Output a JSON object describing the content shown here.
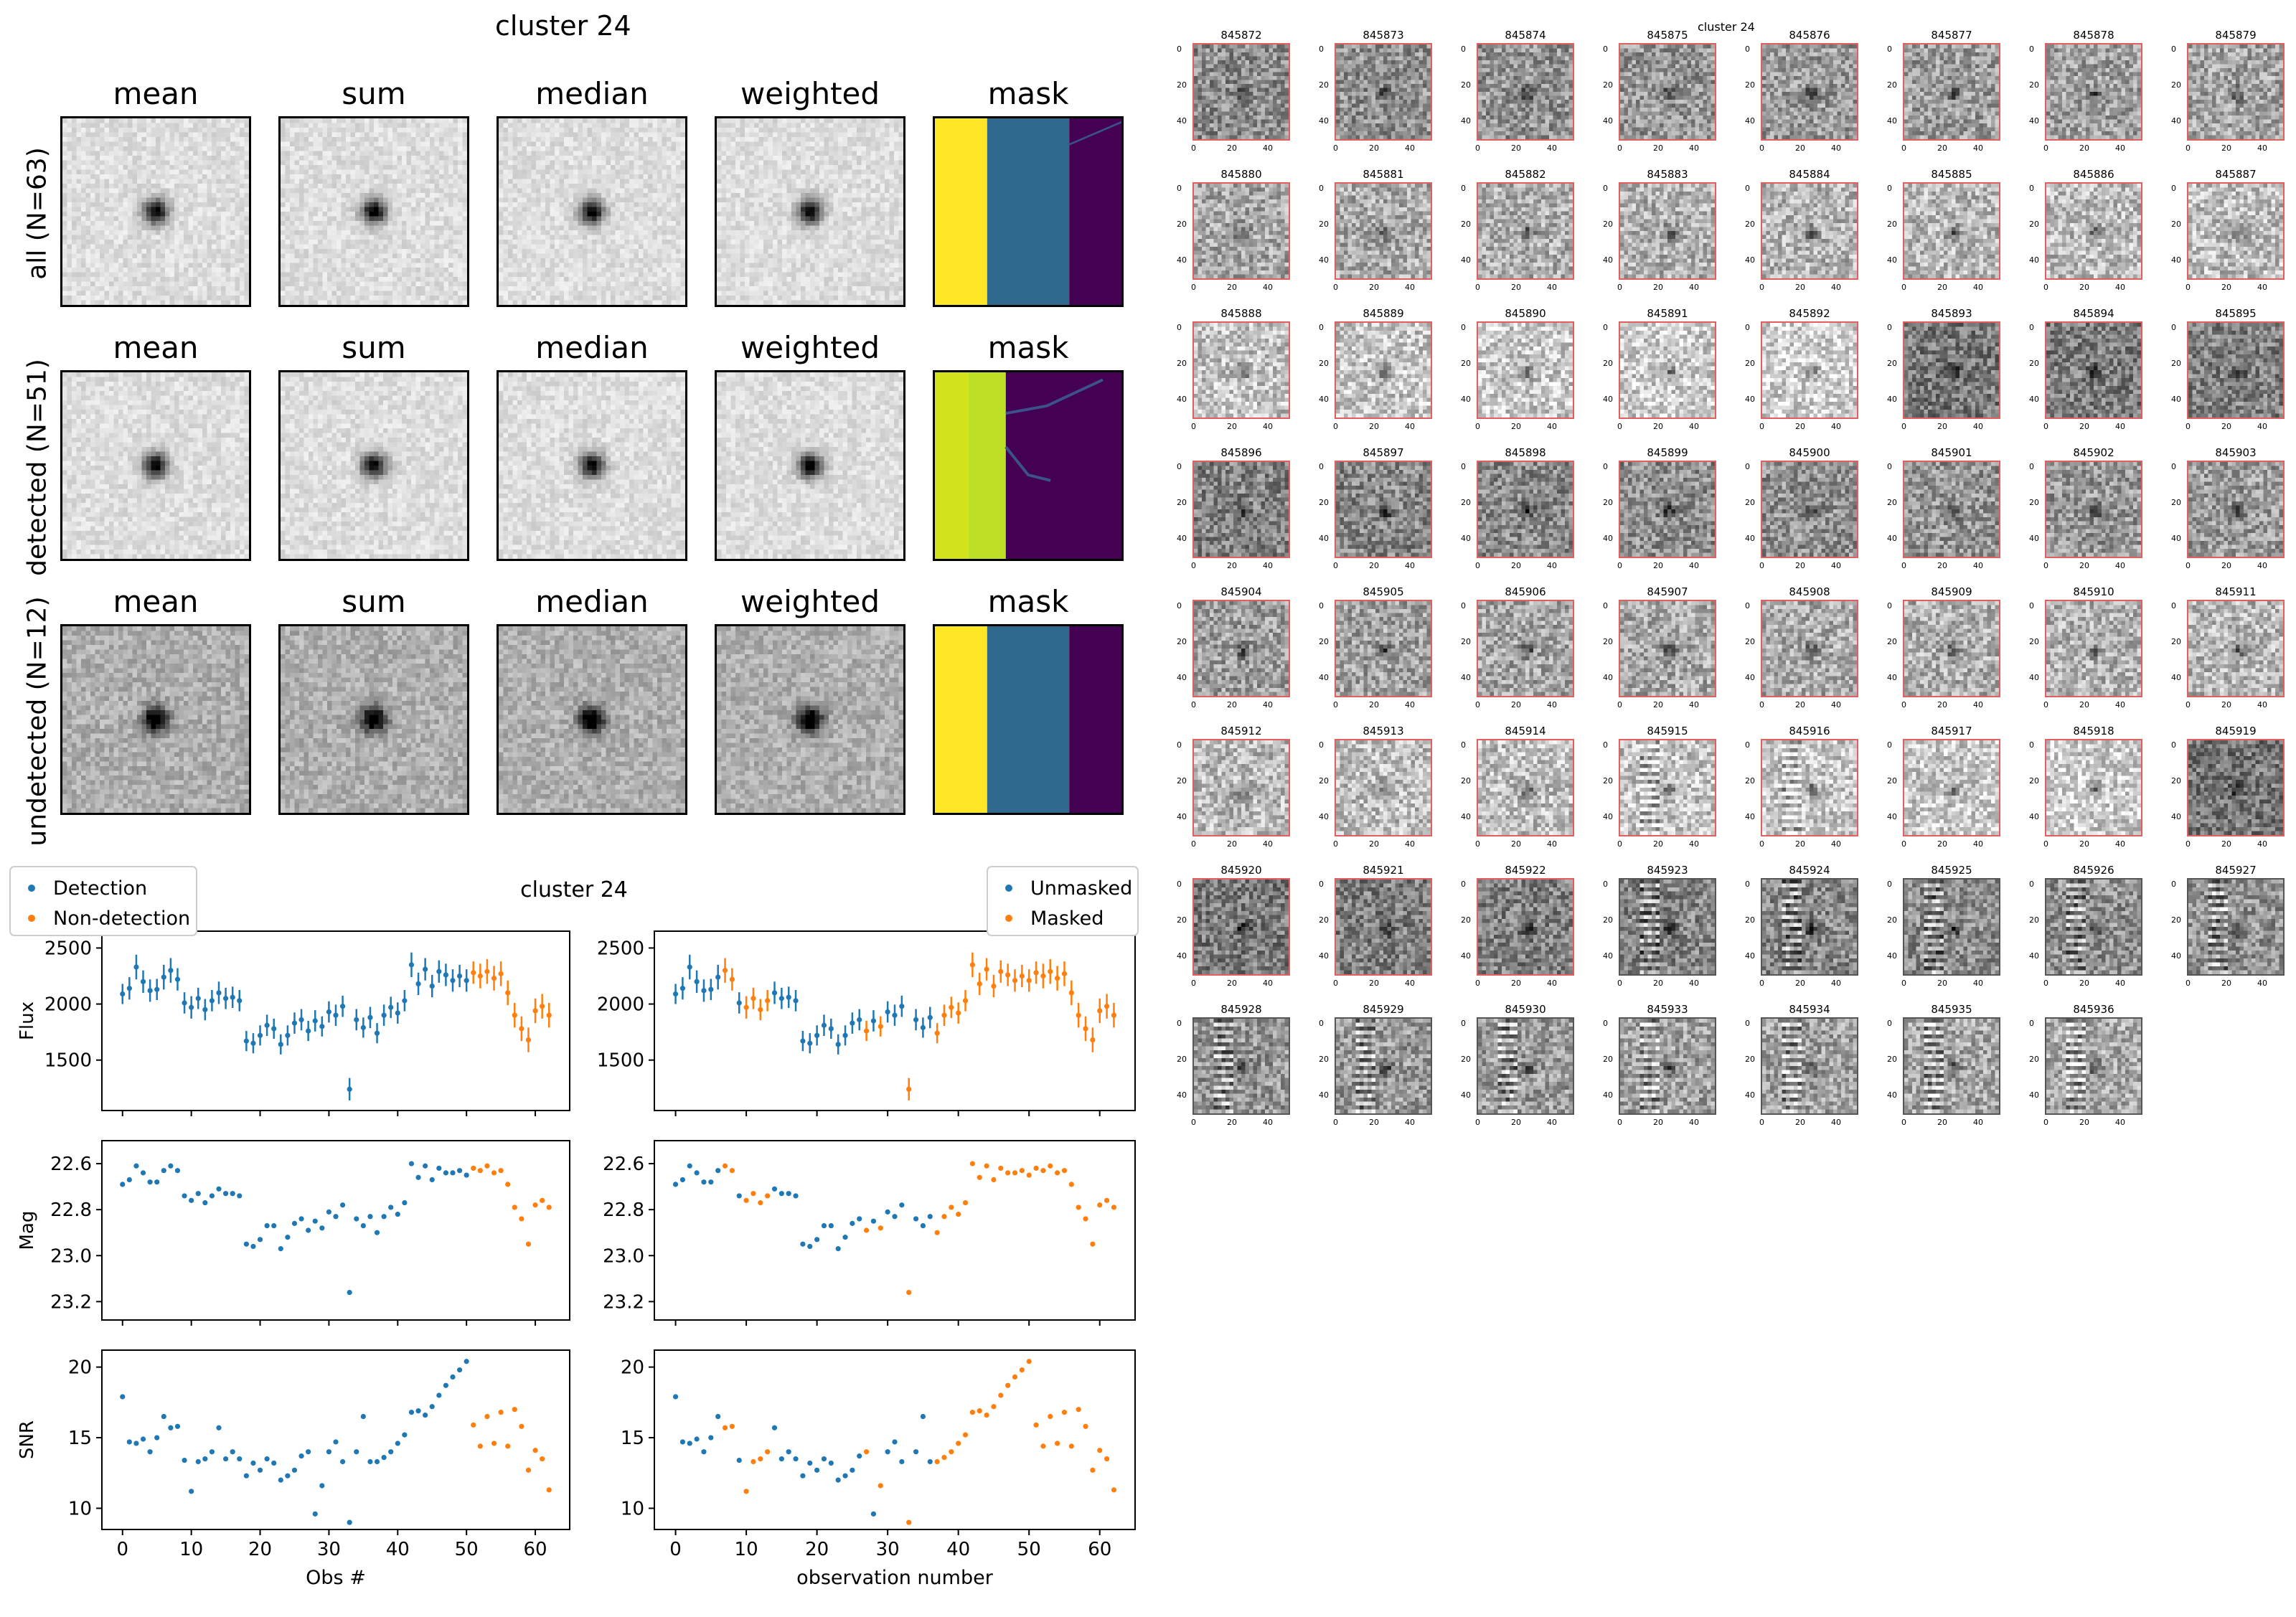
{
  "stamps": {
    "title": "cluster 24",
    "col_titles": [
      "mean",
      "sum",
      "median",
      "weighted",
      "mask"
    ],
    "row_labels": [
      "all (N=63)",
      "detected (N=51)",
      "undetected (N=12)"
    ],
    "mask_colors": [
      "#fde725",
      "#31688e",
      "#440154",
      "#d2e21b"
    ]
  },
  "cutouts": {
    "title": "cluster 24",
    "ids": [
      "845872",
      "845873",
      "845874",
      "845875",
      "845876",
      "845877",
      "845878",
      "845879",
      "845880",
      "845881",
      "845882",
      "845883",
      "845884",
      "845885",
      "845886",
      "845887",
      "845888",
      "845889",
      "845890",
      "845891",
      "845892",
      "845893",
      "845894",
      "845895",
      "845896",
      "845897",
      "845898",
      "845899",
      "845900",
      "845901",
      "845902",
      "845903",
      "845904",
      "845905",
      "845906",
      "845907",
      "845908",
      "845909",
      "845910",
      "845911",
      "845912",
      "845913",
      "845914",
      "845915",
      "845916",
      "845917",
      "845918",
      "845919",
      "845920",
      "845921",
      "845922",
      "845923",
      "845924",
      "845925",
      "845926",
      "845927",
      "845928",
      "845929",
      "845930",
      "845933",
      "845934",
      "845935",
      "845936"
    ],
    "yticks": [
      "0",
      "20",
      "40"
    ],
    "xticks": [
      "0",
      "20",
      "40"
    ]
  },
  "chart_data": [
    {
      "type": "scatter",
      "panel": "left",
      "title": "cluster 24",
      "xlabel": "Obs #",
      "legend": [
        "Detection",
        "Non-detection"
      ],
      "series_colors": [
        "#1f77b4",
        "#ff7f0e"
      ],
      "x": [
        0,
        1,
        2,
        3,
        4,
        5,
        6,
        7,
        8,
        9,
        10,
        11,
        12,
        13,
        14,
        15,
        16,
        17,
        18,
        19,
        20,
        21,
        22,
        23,
        24,
        25,
        26,
        27,
        28,
        29,
        30,
        31,
        32,
        33,
        34,
        35,
        36,
        37,
        38,
        39,
        40,
        41,
        42,
        43,
        44,
        45,
        46,
        47,
        48,
        49,
        50,
        51,
        52,
        53,
        54,
        55,
        56,
        57,
        58,
        59,
        60,
        61,
        62
      ],
      "detected_until": 50,
      "xlim": [
        -3,
        65
      ],
      "xticks": [
        0,
        10,
        20,
        30,
        40,
        50,
        60
      ],
      "subplots": [
        {
          "ylabel": "Flux",
          "ylim": [
            1050,
            2650
          ],
          "yticks": [
            1500,
            2000,
            2500
          ],
          "values": [
            2090,
            2140,
            2330,
            2200,
            2120,
            2130,
            2240,
            2300,
            2220,
            2010,
            1970,
            2050,
            1950,
            2030,
            2100,
            2050,
            2060,
            2030,
            1670,
            1650,
            1720,
            1810,
            1780,
            1640,
            1720,
            1830,
            1860,
            1760,
            1850,
            1800,
            1930,
            1900,
            1980,
            1240,
            1860,
            1790,
            1880,
            1740,
            1900,
            1970,
            1920,
            2030,
            2350,
            2180,
            2310,
            2160,
            2290,
            2260,
            2210,
            2250,
            2210,
            2280,
            2250,
            2290,
            2230,
            2270,
            2100,
            1900,
            1780,
            1680,
            1940,
            1980,
            1900
          ],
          "errors": [
            90,
            100,
            110,
            100,
            100,
            95,
            110,
            110,
            100,
            95,
            100,
            95,
            95,
            95,
            100,
            95,
            95,
            95,
            90,
            90,
            90,
            95,
            90,
            90,
            90,
            95,
            95,
            90,
            95,
            90,
            95,
            95,
            95,
            100,
            95,
            90,
            95,
            90,
            95,
            95,
            95,
            95,
            110,
            100,
            100,
            100,
            100,
            100,
            100,
            100,
            100,
            100,
            110,
            110,
            110,
            110,
            110,
            110,
            110,
            110,
            110,
            110,
            110
          ]
        },
        {
          "ylabel": "Mag",
          "ylim": [
            23.28,
            22.5
          ],
          "yticks": [
            22.6,
            22.8,
            23.0,
            23.2
          ],
          "ytick_labels": [
            "22.6",
            "22.8",
            "23.0",
            "23.2"
          ],
          "values": [
            22.69,
            22.67,
            22.61,
            22.64,
            22.68,
            22.68,
            22.63,
            22.61,
            22.63,
            22.74,
            22.76,
            22.73,
            22.77,
            22.74,
            22.71,
            22.73,
            22.73,
            22.74,
            22.95,
            22.96,
            22.93,
            22.87,
            22.87,
            22.97,
            22.92,
            22.86,
            22.84,
            22.89,
            22.85,
            22.88,
            22.81,
            22.83,
            22.78,
            23.16,
            22.84,
            22.87,
            22.83,
            22.9,
            22.83,
            22.79,
            22.82,
            22.77,
            22.6,
            22.66,
            22.61,
            22.67,
            22.62,
            22.64,
            22.64,
            22.63,
            22.65,
            22.62,
            22.63,
            22.61,
            22.64,
            22.63,
            22.69,
            22.79,
            22.84,
            22.95,
            22.78,
            22.76,
            22.79
          ]
        },
        {
          "ylabel": "SNR",
          "ylim": [
            8.5,
            21.2
          ],
          "yticks": [
            10,
            15,
            20
          ],
          "values": [
            17.9,
            14.7,
            14.6,
            14.9,
            14.0,
            15.0,
            16.5,
            15.7,
            15.8,
            13.4,
            11.2,
            13.3,
            13.5,
            14.0,
            15.7,
            13.5,
            14.0,
            13.5,
            12.3,
            13.2,
            12.7,
            13.5,
            13.2,
            12.0,
            12.3,
            12.7,
            13.7,
            14.0,
            9.6,
            11.6,
            14.0,
            14.7,
            13.3,
            9.0,
            14.0,
            16.5,
            13.3,
            13.3,
            13.6,
            14.0,
            14.6,
            15.2,
            16.8,
            16.9,
            16.6,
            17.2,
            18.0,
            18.7,
            19.3,
            19.8,
            20.4,
            15.9,
            14.4,
            16.5,
            14.6,
            16.8,
            14.4,
            17.0,
            15.8,
            12.7,
            14.1,
            13.5,
            11.3
          ]
        }
      ]
    },
    {
      "type": "scatter",
      "panel": "right",
      "xlabel": "observation number",
      "legend": [
        "Unmasked",
        "Masked"
      ],
      "series_colors": [
        "#1f77b4",
        "#ff7f0e"
      ],
      "masked": [
        7,
        8,
        10,
        11,
        12,
        13,
        27,
        29,
        33,
        37,
        38,
        39,
        40,
        41,
        42,
        43,
        44,
        45,
        46,
        47,
        48,
        49,
        50,
        51,
        52,
        53,
        54,
        55,
        56,
        57,
        58,
        59,
        60,
        61,
        62
      ]
    }
  ]
}
